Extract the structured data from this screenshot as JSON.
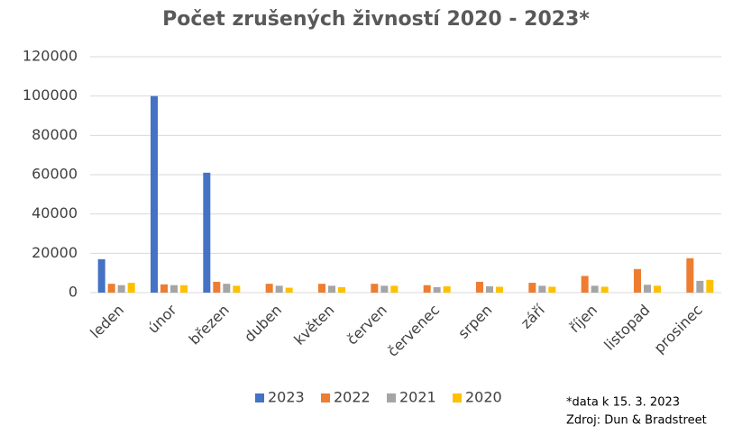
{
  "chart_data": {
    "type": "bar",
    "title": "Počet zrušených živností 2020 - 2023*",
    "categories": [
      "leden",
      "únor",
      "březen",
      "duben",
      "květen",
      "červen",
      "červenec",
      "srpen",
      "září",
      "říjen",
      "listopad",
      "prosinec"
    ],
    "series": [
      {
        "name": "2023",
        "color": "#4472c4",
        "values": [
          17000,
          100000,
          61000,
          null,
          null,
          null,
          null,
          null,
          null,
          null,
          null,
          null
        ]
      },
      {
        "name": "2022",
        "color": "#ed7d31",
        "values": [
          4500,
          4200,
          5500,
          4500,
          4500,
          4500,
          3800,
          5500,
          5000,
          8500,
          12000,
          17500
        ]
      },
      {
        "name": "2021",
        "color": "#a5a5a5",
        "values": [
          3800,
          3800,
          4500,
          3500,
          3500,
          3500,
          2800,
          3200,
          3500,
          3500,
          4000,
          6000
        ]
      },
      {
        "name": "2020",
        "color": "#ffc000",
        "values": [
          5000,
          3800,
          3500,
          2500,
          2800,
          3500,
          3200,
          3000,
          3000,
          3000,
          3500,
          6500
        ]
      }
    ],
    "ylim": [
      0,
      120000
    ],
    "yticks": [
      0,
      20000,
      40000,
      60000,
      80000,
      100000,
      120000
    ],
    "grid": true,
    "notes": [
      "*data k 15. 3. 2023",
      "Zdroj: Dun & Bradstreet"
    ]
  }
}
